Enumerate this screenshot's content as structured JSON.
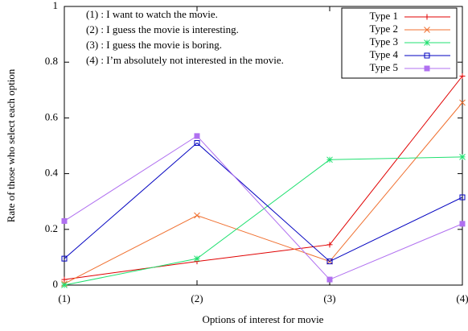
{
  "chart_data": {
    "type": "line",
    "xlabel": "Options of interest for movie",
    "ylabel": "Rate of those who select each option",
    "categories": [
      "(1)",
      "(2)",
      "(3)",
      "(4)"
    ],
    "annotations": [
      "(1) : I want to watch the movie.",
      "(2) : I guess the movie is interesting.",
      "(3) : I guess the movie is boring.",
      "(4) : I’m absolutely not interested in the movie."
    ],
    "ylim": [
      0,
      1
    ],
    "yticks": [
      0,
      0.2,
      0.4,
      0.6,
      0.8,
      1
    ],
    "legend": "upper right",
    "series": [
      {
        "name": "Type 1",
        "color": "#e00000",
        "marker": "plus",
        "values": [
          0.02,
          0.085,
          0.145,
          0.75
        ]
      },
      {
        "name": "Type 2",
        "color": "#f07030",
        "marker": "cross",
        "values": [
          0.005,
          0.25,
          0.085,
          0.655
        ]
      },
      {
        "name": "Type 3",
        "color": "#20e070",
        "marker": "star",
        "values": [
          0,
          0.095,
          0.45,
          0.46
        ]
      },
      {
        "name": "Type 4",
        "color": "#0000c0",
        "marker": "square",
        "values": [
          0.095,
          0.51,
          0.085,
          0.315
        ]
      },
      {
        "name": "Type 5",
        "color": "#b070f0",
        "marker": "filled-square",
        "values": [
          0.23,
          0.535,
          0.02,
          0.22
        ]
      }
    ]
  }
}
